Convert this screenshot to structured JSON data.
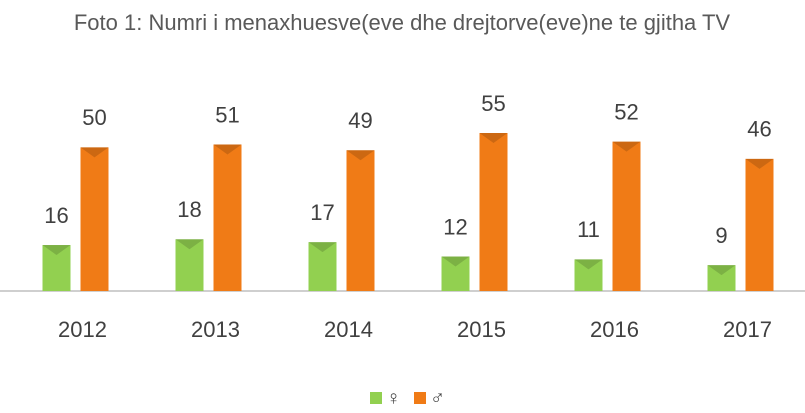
{
  "chart_data": {
    "type": "bar",
    "title": "Foto 1: Numri i menaxhuesve(eve dhe drejtorve(eve)ne te gjitha TV",
    "categories": [
      "2012",
      "2013",
      "2014",
      "2015",
      "2016",
      "2017"
    ],
    "series": [
      {
        "name": "♀",
        "color": "#92d050",
        "values": [
          16,
          18,
          17,
          12,
          11,
          9
        ]
      },
      {
        "name": "♂",
        "color": "#f07b16",
        "values": [
          50,
          51,
          49,
          55,
          52,
          46
        ]
      }
    ],
    "legend": "bottom"
  }
}
